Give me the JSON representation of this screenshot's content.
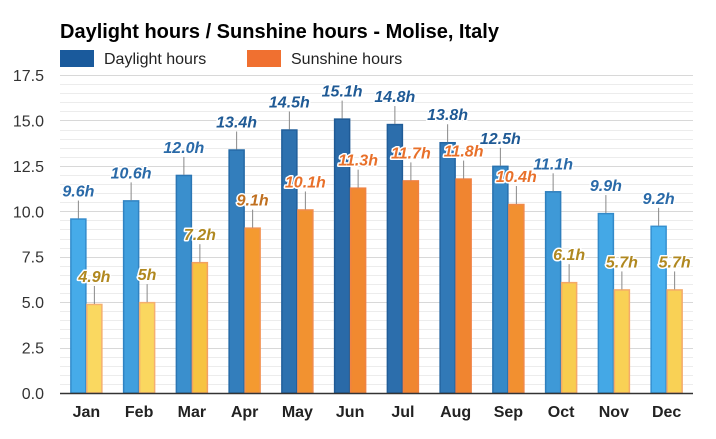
{
  "chart_data": {
    "type": "bar",
    "title": "Daylight hours / Sunshine hours - Molise, Italy",
    "xlabel": "",
    "ylabel": "",
    "ylim": [
      0,
      17.5
    ],
    "yticks": [
      "0.0",
      "2.5",
      "5.0",
      "7.5",
      "10.0",
      "12.5",
      "15.0",
      "17.5"
    ],
    "grid": true,
    "legend_position": "top-left",
    "categories": [
      "Jan",
      "Feb",
      "Mar",
      "Apr",
      "May",
      "Jun",
      "Jul",
      "Aug",
      "Sep",
      "Oct",
      "Nov",
      "Dec"
    ],
    "series": [
      {
        "name": "Daylight hours",
        "legend_color": "#1a5a9c",
        "values": [
          9.6,
          10.6,
          12.0,
          13.4,
          14.5,
          15.1,
          14.8,
          13.8,
          12.5,
          11.1,
          9.9,
          9.2
        ],
        "labels": [
          "9.6h",
          "10.6h",
          "12.0h",
          "13.4h",
          "14.5h",
          "15.1h",
          "14.8h",
          "13.8h",
          "12.5h",
          "11.1h",
          "9.9h",
          "9.2h"
        ]
      },
      {
        "name": "Sunshine hours",
        "legend_color": "#f07030",
        "values": [
          4.9,
          5.0,
          7.2,
          9.1,
          10.1,
          11.3,
          11.7,
          11.8,
          10.4,
          6.1,
          5.7,
          5.7
        ],
        "labels": [
          "4.9h",
          "5h",
          "7.2h",
          "9.1h",
          "10.1h",
          "11.3h",
          "11.7h",
          "11.8h",
          "10.4h",
          "6.1h",
          "5.7h",
          "5.7h"
        ]
      }
    ]
  }
}
